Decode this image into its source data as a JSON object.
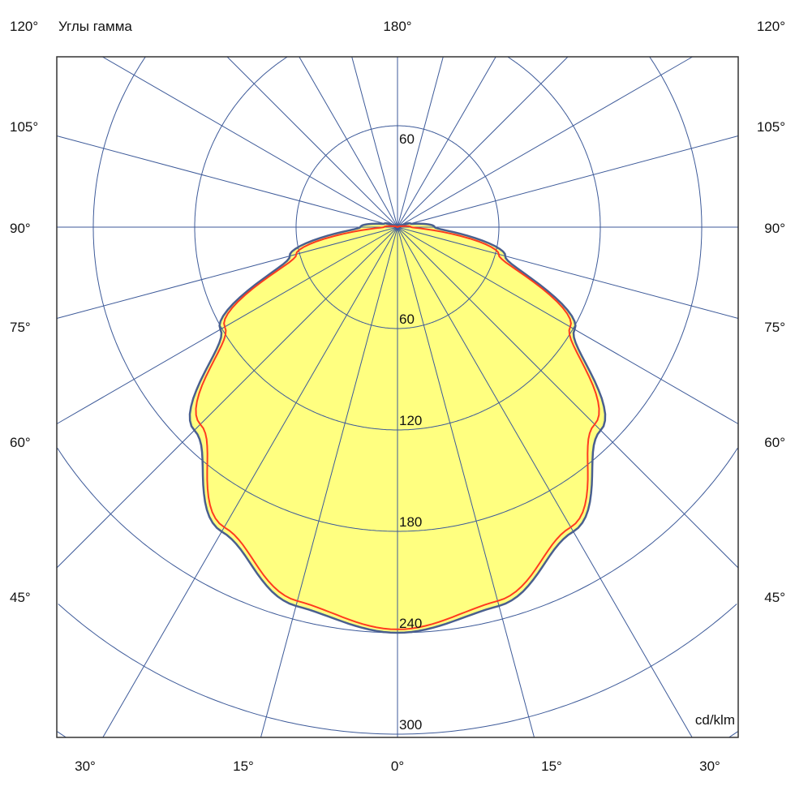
{
  "chart_data": {
    "type": "polar",
    "title": "Углы гамма",
    "unit_label": "cd/klm",
    "radial_ticks": [
      60,
      120,
      180,
      240,
      300
    ],
    "top_radial_tick": "60",
    "radial_max": 300,
    "angle_labels_left": [
      "120°",
      "105°",
      "90°",
      "75°",
      "60°",
      "45°"
    ],
    "angle_labels_right": [
      "120°",
      "105°",
      "90°",
      "75°",
      "60°",
      "45°"
    ],
    "angle_labels_bottom": [
      "30°",
      "15°",
      "0°",
      "15°",
      "30°"
    ],
    "angle_label_top": "180°",
    "grid_angle_step_deg": 15,
    "grid": true,
    "colors": {
      "grid": "#3d5a99",
      "fill": "#ffff80",
      "series1": "#4a5f8f",
      "series2": "#ff3b1f",
      "frame": "#333333"
    },
    "gamma_deg": [
      0,
      15,
      30,
      45,
      60,
      75,
      90,
      105,
      120,
      180
    ],
    "series": [
      {
        "values": [
          240,
          232,
          208,
          170,
          121,
          66,
          22,
          8,
          2,
          0
        ],
        "filled": true
      },
      {
        "values": [
          238,
          229,
          205,
          165,
          118,
          62,
          8,
          2,
          0,
          0
        ],
        "filled": false
      }
    ]
  }
}
